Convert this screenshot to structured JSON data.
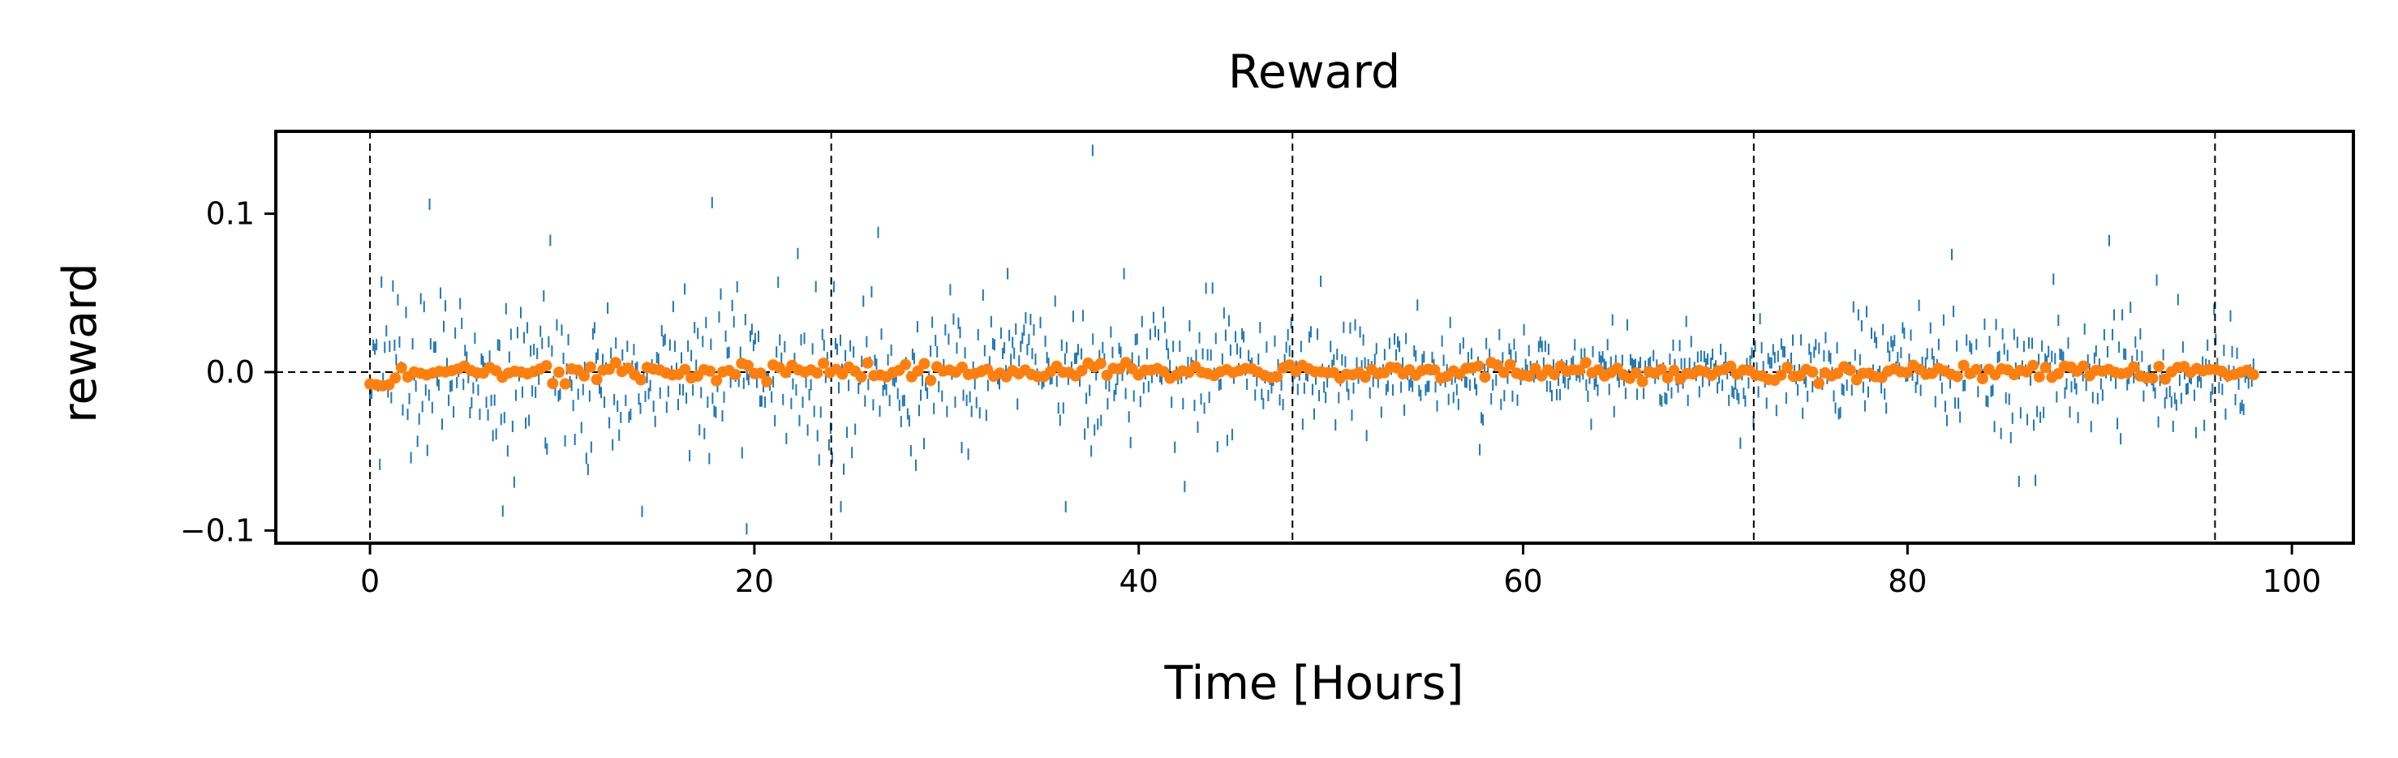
{
  "chart_data": {
    "type": "scatter",
    "title": "Reward",
    "xlabel": "Time [Hours]",
    "ylabel": "reward",
    "xlim": [
      -4.9,
      103.2
    ],
    "ylim": [
      -0.108,
      0.152
    ],
    "xticks": [
      0,
      20,
      40,
      60,
      80,
      100
    ],
    "xtick_labels": [
      "0",
      "20",
      "40",
      "60",
      "80",
      "100"
    ],
    "yticks": [
      -0.1,
      0.0,
      0.1
    ],
    "ytick_labels": [
      "−0.1",
      "0.0",
      "0.1"
    ],
    "reference_lines": {
      "horizontal": [
        0.0
      ],
      "vertical": [
        0,
        24,
        48,
        72,
        96
      ],
      "style": "dashed",
      "color": "#000000"
    },
    "grid": false,
    "legend": "none",
    "series": [
      {
        "style": "vertical-tick-markers",
        "color": "#1f77b4",
        "x_range": [
          0,
          98
        ],
        "spread_envelope": [
          {
            "x": 0,
            "spread": 0.045
          },
          {
            "x": 24,
            "spread": 0.045
          },
          {
            "x": 44,
            "spread": 0.038
          },
          {
            "x": 52,
            "spread": 0.03
          },
          {
            "x": 66,
            "spread": 0.022
          },
          {
            "x": 76,
            "spread": 0.024
          },
          {
            "x": 84,
            "spread": 0.035
          },
          {
            "x": 98,
            "spread": 0.034
          }
        ],
        "notable_points": [
          {
            "x": 3.1,
            "y": 0.106
          },
          {
            "x": 17.8,
            "y": 0.107
          },
          {
            "x": 19.6,
            "y": -0.099
          },
          {
            "x": 37.6,
            "y": 0.14
          },
          {
            "x": 24.5,
            "y": -0.085
          },
          {
            "x": 36.2,
            "y": -0.085
          },
          {
            "x": 85.8,
            "y": -0.069
          }
        ]
      },
      {
        "style": "points",
        "color": "#ff7f0e",
        "x_range": [
          0,
          98
        ],
        "y_range": [
          -0.01,
          0.006
        ]
      }
    ]
  }
}
